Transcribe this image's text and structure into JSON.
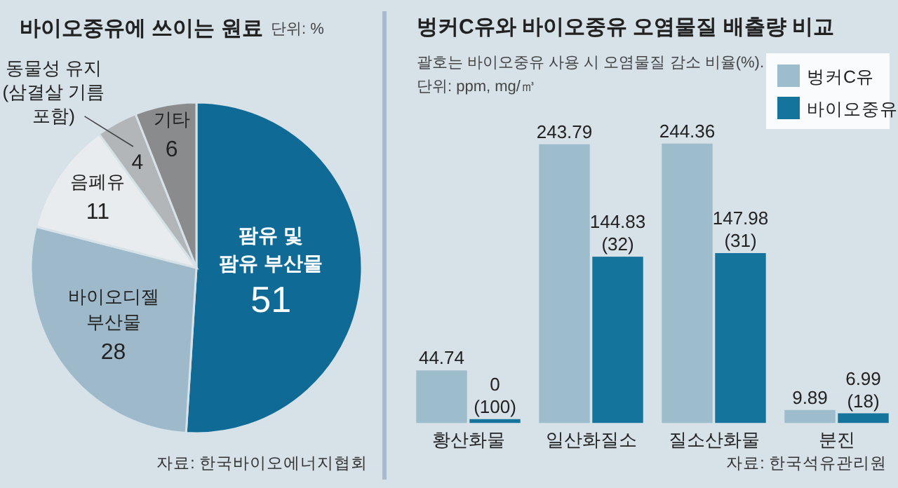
{
  "chart_data": [
    {
      "type": "pie",
      "title": "바이오중유에 쓰이는 원료",
      "subtitle": "단위: %",
      "categories": [
        "팜유 및\n팜유 부산물",
        "바이오디젤\n부산물",
        "음폐유",
        "동물성 유지\n(삼결살 기름\n포함)",
        "기타"
      ],
      "values": [
        51,
        28,
        11,
        4,
        6
      ],
      "colors": [
        "#0f6a96",
        "#9ebaca",
        "#e9ecee",
        "#b2b6b9",
        "#898b8d"
      ],
      "data_labels": true,
      "annotations": [
        "자료: 한국바이오에너지협회"
      ]
    },
    {
      "type": "bar",
      "title": "벙커C유와 바이오중유 오염물질 배출량 비교",
      "subtitle": "괄호는 바이오중유 사용 시 오염물질 감소 비율(%).\n단위: ppm, mg/㎥",
      "categories": [
        "황산화물",
        "일산화질소",
        "질소산화물",
        "분진"
      ],
      "series": [
        {
          "name": "벙커C유",
          "color": "#9dbccc",
          "values": [
            44.74,
            243.79,
            244.36,
            9.89
          ],
          "value_labels": [
            "44.74",
            "243.79",
            "244.36",
            "9.89"
          ]
        },
        {
          "name": "바이오중유",
          "color": "#15749b",
          "values": [
            0,
            144.83,
            147.98,
            6.99
          ],
          "value_labels": [
            "0\n(100)",
            "144.83\n(32)",
            "147.98\n(31)",
            "6.99\n(18)"
          ]
        }
      ],
      "legend": "top right",
      "annotations": [
        "자료: 한국석유관리원"
      ]
    }
  ]
}
